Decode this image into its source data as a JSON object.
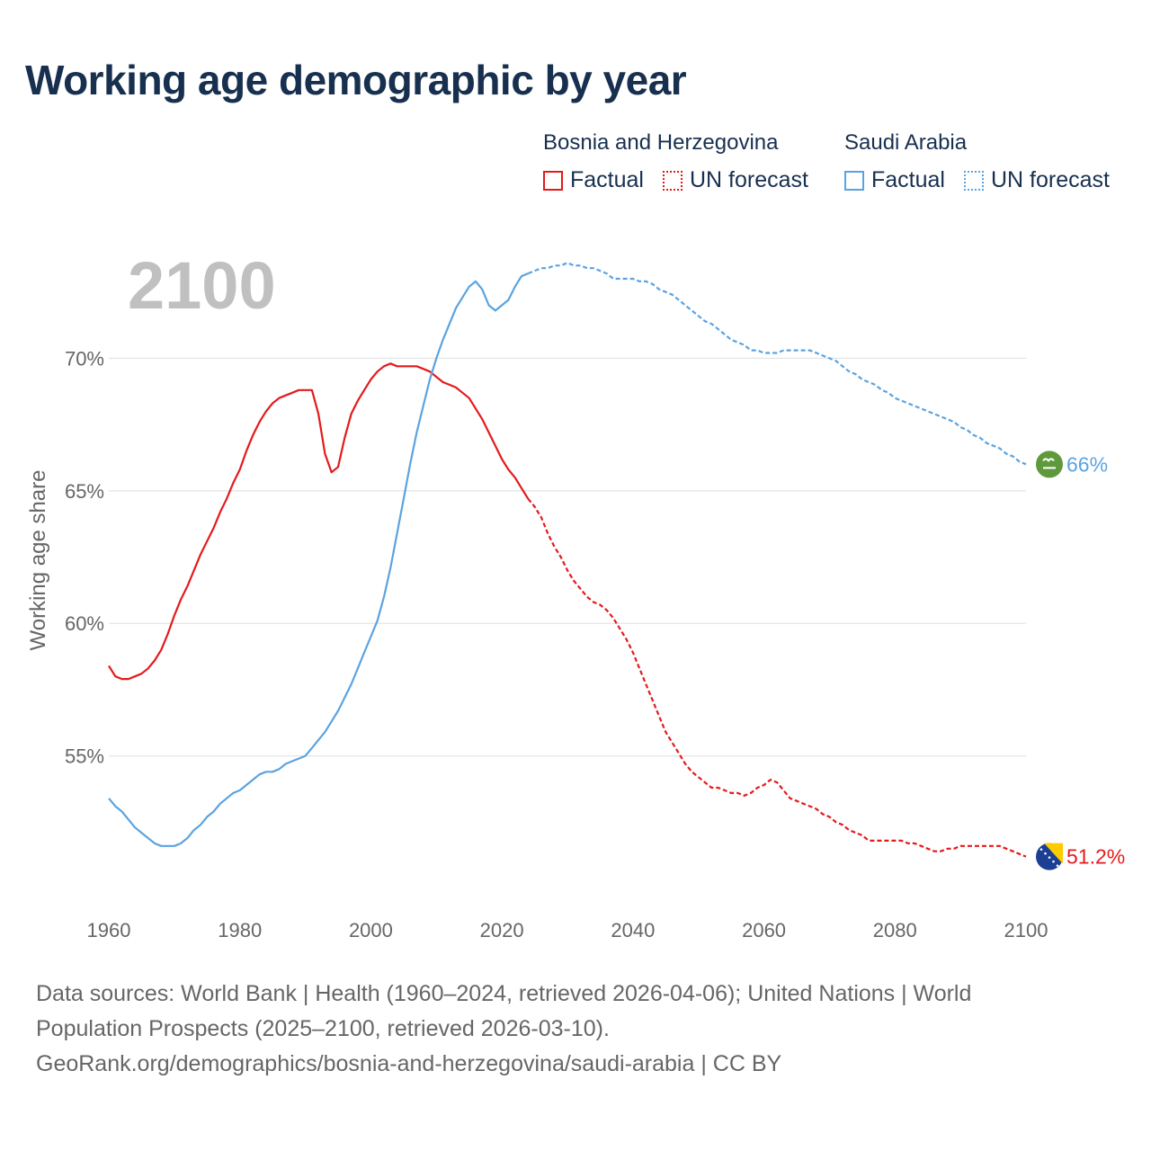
{
  "title": "Working age demographic by year",
  "legend": {
    "groups": [
      {
        "name": "Bosnia and Herzegovina",
        "factual": "Factual",
        "forecast": "UN forecast"
      },
      {
        "name": "Saudi Arabia",
        "factual": "Factual",
        "forecast": "UN forecast"
      }
    ]
  },
  "colors": {
    "bosnia": "#e41a1c",
    "saudi": "#5ba3e0",
    "year_watermark": "#c0c0c0",
    "grid": "#e6e6e6",
    "axis_text": "#666666"
  },
  "footer": {
    "line1": "Data sources: World Bank | Health (1960–2024, retrieved 2026-04-06); United Nations | World",
    "line2": "Population Prospects (2025–2100, retrieved 2026-03-10).",
    "line3": "GeoRank.org/demographics/bosnia-and-herzegovina/saudi-arabia | CC BY"
  },
  "chart_data": {
    "type": "line",
    "title": "Working age demographic by year",
    "year_label": "2100",
    "ylabel": "Working age share",
    "xlabel": "",
    "xlim": [
      1960,
      2100
    ],
    "ylim": [
      50,
      73
    ],
    "x_ticks": [
      1960,
      1980,
      2000,
      2020,
      2040,
      2060,
      2080,
      2100
    ],
    "x_tick_labels": [
      "1960",
      "1980",
      "2000",
      "2020",
      "2040",
      "2060",
      "2080",
      "2100"
    ],
    "y_ticks": [
      55,
      60,
      65,
      70
    ],
    "y_tick_labels": [
      "55%",
      "60%",
      "65%",
      "70%"
    ],
    "factual_end_year": 2024,
    "series": [
      {
        "name": "Bosnia and Herzegovina",
        "color": "#e41a1c",
        "end_label": "51.2%",
        "flag_icon": "bosnia-flag-icon",
        "points": [
          [
            1960,
            58.4
          ],
          [
            1961,
            58.0
          ],
          [
            1962,
            57.9
          ],
          [
            1963,
            57.9
          ],
          [
            1964,
            58.0
          ],
          [
            1965,
            58.1
          ],
          [
            1966,
            58.3
          ],
          [
            1967,
            58.6
          ],
          [
            1968,
            59.0
          ],
          [
            1969,
            59.6
          ],
          [
            1970,
            60.3
          ],
          [
            1971,
            60.9
          ],
          [
            1972,
            61.4
          ],
          [
            1973,
            62.0
          ],
          [
            1974,
            62.6
          ],
          [
            1975,
            63.1
          ],
          [
            1976,
            63.6
          ],
          [
            1977,
            64.2
          ],
          [
            1978,
            64.7
          ],
          [
            1979,
            65.3
          ],
          [
            1980,
            65.8
          ],
          [
            1981,
            66.5
          ],
          [
            1982,
            67.1
          ],
          [
            1983,
            67.6
          ],
          [
            1984,
            68.0
          ],
          [
            1985,
            68.3
          ],
          [
            1986,
            68.5
          ],
          [
            1987,
            68.6
          ],
          [
            1988,
            68.7
          ],
          [
            1989,
            68.8
          ],
          [
            1990,
            68.8
          ],
          [
            1991,
            68.8
          ],
          [
            1992,
            67.9
          ],
          [
            1993,
            66.4
          ],
          [
            1994,
            65.7
          ],
          [
            1995,
            65.9
          ],
          [
            1996,
            67.0
          ],
          [
            1997,
            67.9
          ],
          [
            1998,
            68.4
          ],
          [
            1999,
            68.8
          ],
          [
            2000,
            69.2
          ],
          [
            2001,
            69.5
          ],
          [
            2002,
            69.7
          ],
          [
            2003,
            69.8
          ],
          [
            2004,
            69.7
          ],
          [
            2005,
            69.7
          ],
          [
            2006,
            69.7
          ],
          [
            2007,
            69.7
          ],
          [
            2008,
            69.6
          ],
          [
            2009,
            69.5
          ],
          [
            2010,
            69.3
          ],
          [
            2011,
            69.1
          ],
          [
            2012,
            69.0
          ],
          [
            2013,
            68.9
          ],
          [
            2014,
            68.7
          ],
          [
            2015,
            68.5
          ],
          [
            2016,
            68.1
          ],
          [
            2017,
            67.7
          ],
          [
            2018,
            67.2
          ],
          [
            2019,
            66.7
          ],
          [
            2020,
            66.2
          ],
          [
            2021,
            65.8
          ],
          [
            2022,
            65.5
          ],
          [
            2023,
            65.1
          ],
          [
            2024,
            64.7
          ],
          [
            2025,
            64.4
          ],
          [
            2026,
            64.0
          ],
          [
            2027,
            63.4
          ],
          [
            2028,
            62.9
          ],
          [
            2029,
            62.5
          ],
          [
            2030,
            62.0
          ],
          [
            2031,
            61.6
          ],
          [
            2032,
            61.3
          ],
          [
            2033,
            61.0
          ],
          [
            2034,
            60.8
          ],
          [
            2035,
            60.7
          ],
          [
            2036,
            60.5
          ],
          [
            2037,
            60.2
          ],
          [
            2038,
            59.8
          ],
          [
            2039,
            59.4
          ],
          [
            2040,
            58.9
          ],
          [
            2041,
            58.3
          ],
          [
            2042,
            57.7
          ],
          [
            2043,
            57.1
          ],
          [
            2044,
            56.5
          ],
          [
            2045,
            55.9
          ],
          [
            2046,
            55.5
          ],
          [
            2047,
            55.1
          ],
          [
            2048,
            54.7
          ],
          [
            2049,
            54.4
          ],
          [
            2050,
            54.2
          ],
          [
            2051,
            54.0
          ],
          [
            2052,
            53.8
          ],
          [
            2053,
            53.8
          ],
          [
            2054,
            53.7
          ],
          [
            2055,
            53.6
          ],
          [
            2056,
            53.6
          ],
          [
            2057,
            53.5
          ],
          [
            2058,
            53.6
          ],
          [
            2059,
            53.8
          ],
          [
            2060,
            53.9
          ],
          [
            2061,
            54.1
          ],
          [
            2062,
            54.0
          ],
          [
            2063,
            53.7
          ],
          [
            2064,
            53.4
          ],
          [
            2065,
            53.3
          ],
          [
            2066,
            53.2
          ],
          [
            2067,
            53.1
          ],
          [
            2068,
            53.0
          ],
          [
            2069,
            52.8
          ],
          [
            2070,
            52.7
          ],
          [
            2071,
            52.5
          ],
          [
            2072,
            52.4
          ],
          [
            2073,
            52.2
          ],
          [
            2074,
            52.1
          ],
          [
            2075,
            52.0
          ],
          [
            2076,
            51.8
          ],
          [
            2077,
            51.8
          ],
          [
            2078,
            51.8
          ],
          [
            2079,
            51.8
          ],
          [
            2080,
            51.8
          ],
          [
            2081,
            51.8
          ],
          [
            2082,
            51.7
          ],
          [
            2083,
            51.7
          ],
          [
            2084,
            51.6
          ],
          [
            2085,
            51.5
          ],
          [
            2086,
            51.4
          ],
          [
            2087,
            51.4
          ],
          [
            2088,
            51.5
          ],
          [
            2089,
            51.5
          ],
          [
            2090,
            51.6
          ],
          [
            2091,
            51.6
          ],
          [
            2092,
            51.6
          ],
          [
            2093,
            51.6
          ],
          [
            2094,
            51.6
          ],
          [
            2095,
            51.6
          ],
          [
            2096,
            51.6
          ],
          [
            2097,
            51.5
          ],
          [
            2098,
            51.4
          ],
          [
            2099,
            51.3
          ],
          [
            2100,
            51.2
          ]
        ]
      },
      {
        "name": "Saudi Arabia",
        "color": "#5ba3e0",
        "end_label": "66%",
        "flag_icon": "saudi-flag-icon",
        "points": [
          [
            1960,
            53.4
          ],
          [
            1961,
            53.1
          ],
          [
            1962,
            52.9
          ],
          [
            1963,
            52.6
          ],
          [
            1964,
            52.3
          ],
          [
            1965,
            52.1
          ],
          [
            1966,
            51.9
          ],
          [
            1967,
            51.7
          ],
          [
            1968,
            51.6
          ],
          [
            1969,
            51.6
          ],
          [
            1970,
            51.6
          ],
          [
            1971,
            51.7
          ],
          [
            1972,
            51.9
          ],
          [
            1973,
            52.2
          ],
          [
            1974,
            52.4
          ],
          [
            1975,
            52.7
          ],
          [
            1976,
            52.9
          ],
          [
            1977,
            53.2
          ],
          [
            1978,
            53.4
          ],
          [
            1979,
            53.6
          ],
          [
            1980,
            53.7
          ],
          [
            1981,
            53.9
          ],
          [
            1982,
            54.1
          ],
          [
            1983,
            54.3
          ],
          [
            1984,
            54.4
          ],
          [
            1985,
            54.4
          ],
          [
            1986,
            54.5
          ],
          [
            1987,
            54.7
          ],
          [
            1988,
            54.8
          ],
          [
            1989,
            54.9
          ],
          [
            1990,
            55.0
          ],
          [
            1991,
            55.3
          ],
          [
            1992,
            55.6
          ],
          [
            1993,
            55.9
          ],
          [
            1994,
            56.3
          ],
          [
            1995,
            56.7
          ],
          [
            1996,
            57.2
          ],
          [
            1997,
            57.7
          ],
          [
            1998,
            58.3
          ],
          [
            1999,
            58.9
          ],
          [
            2000,
            59.5
          ],
          [
            2001,
            60.1
          ],
          [
            2002,
            61.0
          ],
          [
            2003,
            62.1
          ],
          [
            2004,
            63.4
          ],
          [
            2005,
            64.7
          ],
          [
            2006,
            66.0
          ],
          [
            2007,
            67.2
          ],
          [
            2008,
            68.2
          ],
          [
            2009,
            69.2
          ],
          [
            2010,
            70.0
          ],
          [
            2011,
            70.7
          ],
          [
            2012,
            71.3
          ],
          [
            2013,
            71.9
          ],
          [
            2014,
            72.3
          ],
          [
            2015,
            72.7
          ],
          [
            2016,
            72.9
          ],
          [
            2017,
            72.6
          ],
          [
            2018,
            72.0
          ],
          [
            2019,
            71.8
          ],
          [
            2020,
            72.0
          ],
          [
            2021,
            72.2
          ],
          [
            2022,
            72.7
          ],
          [
            2023,
            73.1
          ],
          [
            2024,
            73.2
          ],
          [
            2025,
            73.3
          ],
          [
            2026,
            73.4
          ],
          [
            2027,
            73.4
          ],
          [
            2028,
            73.5
          ],
          [
            2029,
            73.5
          ],
          [
            2030,
            73.6
          ],
          [
            2031,
            73.5
          ],
          [
            2032,
            73.5
          ],
          [
            2033,
            73.4
          ],
          [
            2034,
            73.4
          ],
          [
            2035,
            73.3
          ],
          [
            2036,
            73.2
          ],
          [
            2037,
            73.0
          ],
          [
            2038,
            73.0
          ],
          [
            2039,
            73.0
          ],
          [
            2040,
            73.0
          ],
          [
            2041,
            72.9
          ],
          [
            2042,
            72.9
          ],
          [
            2043,
            72.8
          ],
          [
            2044,
            72.6
          ],
          [
            2045,
            72.5
          ],
          [
            2046,
            72.4
          ],
          [
            2047,
            72.2
          ],
          [
            2048,
            72.0
          ],
          [
            2049,
            71.8
          ],
          [
            2050,
            71.6
          ],
          [
            2051,
            71.4
          ],
          [
            2052,
            71.3
          ],
          [
            2053,
            71.1
          ],
          [
            2054,
            70.9
          ],
          [
            2055,
            70.7
          ],
          [
            2056,
            70.6
          ],
          [
            2057,
            70.5
          ],
          [
            2058,
            70.3
          ],
          [
            2059,
            70.3
          ],
          [
            2060,
            70.2
          ],
          [
            2061,
            70.2
          ],
          [
            2062,
            70.2
          ],
          [
            2063,
            70.3
          ],
          [
            2064,
            70.3
          ],
          [
            2065,
            70.3
          ],
          [
            2066,
            70.3
          ],
          [
            2067,
            70.3
          ],
          [
            2068,
            70.2
          ],
          [
            2069,
            70.1
          ],
          [
            2070,
            70.0
          ],
          [
            2071,
            69.9
          ],
          [
            2072,
            69.7
          ],
          [
            2073,
            69.5
          ],
          [
            2074,
            69.4
          ],
          [
            2075,
            69.2
          ],
          [
            2076,
            69.1
          ],
          [
            2077,
            69.0
          ],
          [
            2078,
            68.8
          ],
          [
            2079,
            68.7
          ],
          [
            2080,
            68.5
          ],
          [
            2081,
            68.4
          ],
          [
            2082,
            68.3
          ],
          [
            2083,
            68.2
          ],
          [
            2084,
            68.1
          ],
          [
            2085,
            68.0
          ],
          [
            2086,
            67.9
          ],
          [
            2087,
            67.8
          ],
          [
            2088,
            67.7
          ],
          [
            2089,
            67.6
          ],
          [
            2090,
            67.4
          ],
          [
            2091,
            67.3
          ],
          [
            2092,
            67.1
          ],
          [
            2093,
            67.0
          ],
          [
            2094,
            66.8
          ],
          [
            2095,
            66.7
          ],
          [
            2096,
            66.6
          ],
          [
            2097,
            66.4
          ],
          [
            2098,
            66.3
          ],
          [
            2099,
            66.1
          ],
          [
            2100,
            66.0
          ]
        ]
      }
    ]
  }
}
